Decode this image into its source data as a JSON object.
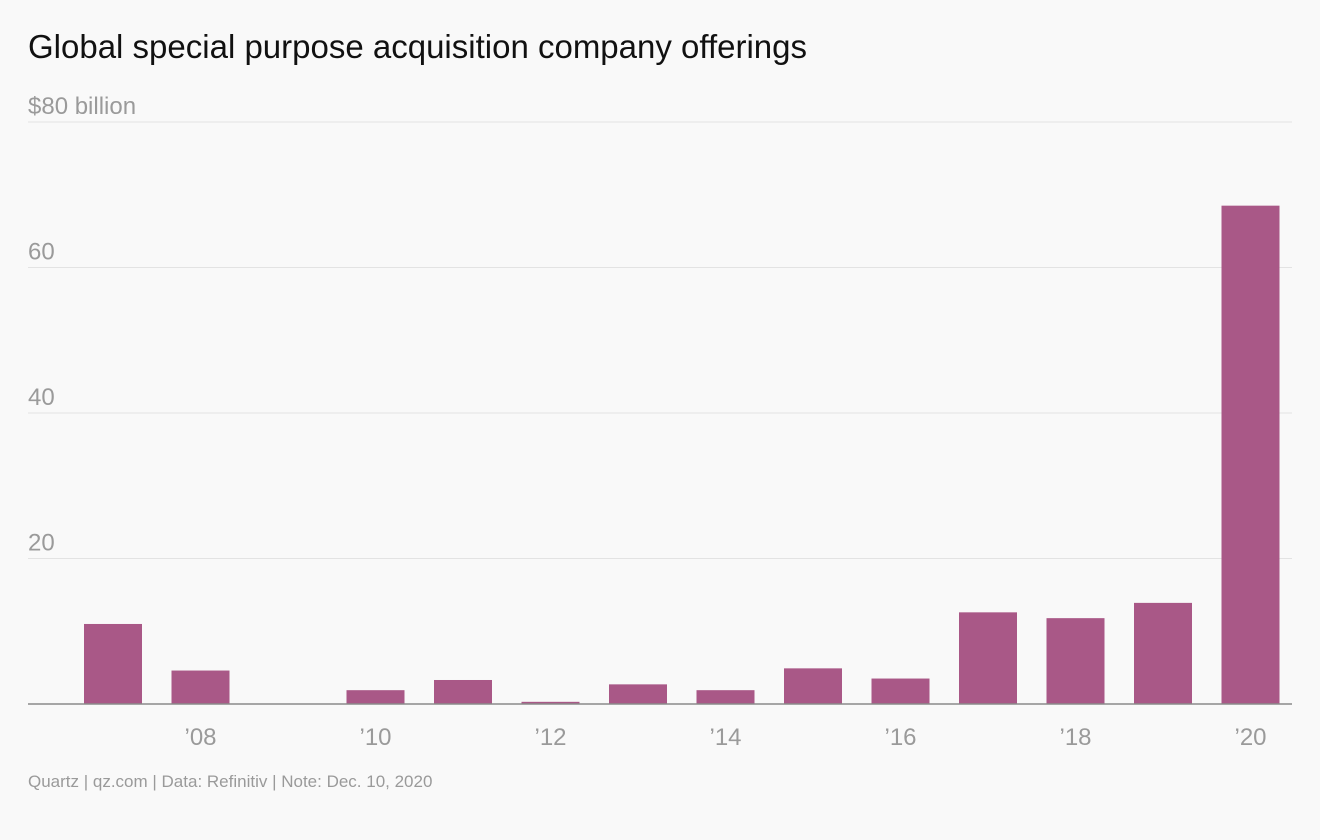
{
  "header": {
    "title": "Global special purpose acquisition company offerings"
  },
  "footer": {
    "credit": "Quartz | qz.com | Data: Refinitiv | Note: Dec. 10, 2020"
  },
  "colors": {
    "bar": "#a95887",
    "grid": "#e3e3e3",
    "baseline": "#8a8a8a",
    "tick_text": "#9a9a9a",
    "background": "#f9f9f9"
  },
  "chart_data": {
    "type": "bar",
    "categories": [
      "2007",
      "2008",
      "2009",
      "2010",
      "2011",
      "2012",
      "2013",
      "2014",
      "2015",
      "2016",
      "2017",
      "2018",
      "2019",
      "2020"
    ],
    "values": [
      11.0,
      4.6,
      0.0,
      1.9,
      3.3,
      0.3,
      2.7,
      1.9,
      4.9,
      3.5,
      12.6,
      11.8,
      13.9,
      68.5
    ],
    "ylim": [
      0,
      80
    ],
    "y_ticks": [
      {
        "value": 80,
        "label": "$80 billion"
      },
      {
        "value": 60,
        "label": "60"
      },
      {
        "value": 40,
        "label": "40"
      },
      {
        "value": 20,
        "label": "20"
      }
    ],
    "x_tick_labels": [
      {
        "category": "2008",
        "label": "’08"
      },
      {
        "category": "2010",
        "label": "’10"
      },
      {
        "category": "2012",
        "label": "’12"
      },
      {
        "category": "2014",
        "label": "’14"
      },
      {
        "category": "2016",
        "label": "’16"
      },
      {
        "category": "2018",
        "label": "’18"
      },
      {
        "category": "2020",
        "label": "’20"
      }
    ],
    "grid": true,
    "legend": "none"
  }
}
